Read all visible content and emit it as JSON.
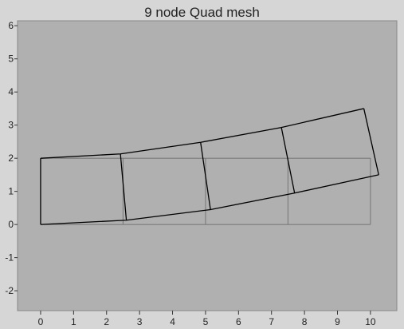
{
  "chart_data": {
    "type": "line",
    "title": "9 node Quad mesh",
    "xlabel": "",
    "ylabel": "",
    "xlim": [
      -0.7,
      10.8
    ],
    "ylim": [
      -2.6,
      6.15
    ],
    "xticks": [
      0,
      1,
      2,
      3,
      4,
      5,
      6,
      7,
      8,
      9,
      10
    ],
    "yticks": [
      -2,
      -1,
      0,
      1,
      2,
      3,
      4,
      5,
      6
    ],
    "grid": false,
    "background_color": "#b0b0b0",
    "series": [
      {
        "role": "undeformed",
        "color": "#7a7a7a",
        "segments": [
          [
            [
              0,
              0
            ],
            [
              10,
              0
            ]
          ],
          [
            [
              0,
              2
            ],
            [
              10,
              2
            ]
          ],
          [
            [
              0,
              0
            ],
            [
              0,
              2
            ]
          ],
          [
            [
              2.5,
              0
            ],
            [
              2.5,
              2
            ]
          ],
          [
            [
              5,
              0
            ],
            [
              5,
              2
            ]
          ],
          [
            [
              7.5,
              0
            ],
            [
              7.5,
              2
            ]
          ],
          [
            [
              10,
              0
            ],
            [
              10,
              2
            ]
          ]
        ]
      },
      {
        "role": "deformed",
        "color": "#000000",
        "segments": [
          [
            [
              0,
              0
            ],
            [
              2.6,
              0.13
            ],
            [
              5.15,
              0.45
            ],
            [
              7.7,
              0.95
            ],
            [
              10.25,
              1.5
            ]
          ],
          [
            [
              0,
              2
            ],
            [
              2.42,
              2.13
            ],
            [
              4.85,
              2.48
            ],
            [
              7.3,
              2.93
            ],
            [
              9.8,
              3.5
            ]
          ],
          [
            [
              0,
              0
            ],
            [
              0,
              2
            ]
          ],
          [
            [
              2.6,
              0.13
            ],
            [
              2.42,
              2.13
            ]
          ],
          [
            [
              5.15,
              0.45
            ],
            [
              4.85,
              2.48
            ]
          ],
          [
            [
              7.7,
              0.95
            ],
            [
              7.3,
              2.93
            ]
          ],
          [
            [
              10.25,
              1.5
            ],
            [
              9.8,
              3.5
            ]
          ]
        ]
      }
    ]
  }
}
